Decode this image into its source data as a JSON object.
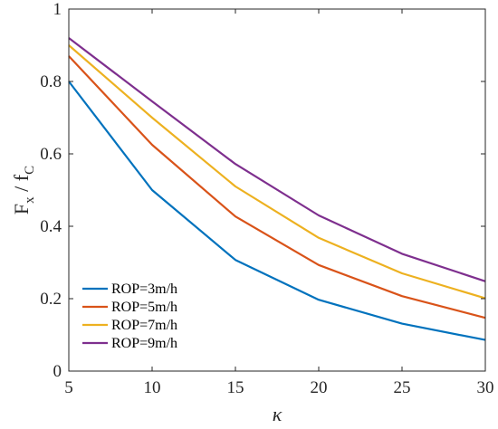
{
  "chart_data": {
    "type": "line",
    "xlabel": "κ",
    "ylabel_main": "F",
    "ylabel_sub1": "x",
    "ylabel_mid": " / f",
    "ylabel_sub2": "C",
    "xlim": [
      5,
      30
    ],
    "ylim": [
      0,
      1
    ],
    "xticks": [
      5,
      10,
      15,
      20,
      25,
      30
    ],
    "yticks": [
      0,
      0.2,
      0.4,
      0.6,
      0.8,
      1
    ],
    "ytick_labels": [
      "0",
      "0.2",
      "0.4",
      "0.6",
      "0.8",
      "1"
    ],
    "grid": false,
    "legend_position": "bottom-left",
    "x": [
      5,
      10,
      15,
      20,
      25,
      30
    ],
    "series": [
      {
        "name": "ROP=3m/h",
        "color": "#0072BD",
        "values": [
          0.8,
          0.5,
          0.307,
          0.197,
          0.131,
          0.086
        ]
      },
      {
        "name": "ROP=5m/h",
        "color": "#D95319",
        "values": [
          0.87,
          0.625,
          0.427,
          0.293,
          0.207,
          0.147
        ]
      },
      {
        "name": "ROP=7m/h",
        "color": "#EDB120",
        "values": [
          0.9,
          0.7,
          0.51,
          0.368,
          0.27,
          0.201
        ]
      },
      {
        "name": "ROP=9m/h",
        "color": "#7E2F8E",
        "values": [
          0.92,
          0.745,
          0.572,
          0.43,
          0.324,
          0.248
        ]
      }
    ]
  }
}
